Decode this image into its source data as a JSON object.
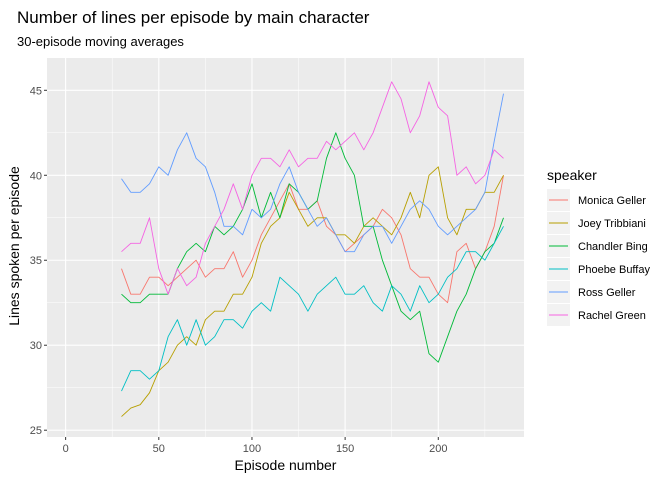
{
  "chart_data": {
    "type": "line",
    "title": "Number of lines per episode by main character",
    "subtitle": "30-episode moving averages",
    "xlabel": "Episode number",
    "ylabel": "Lines spoken per episode",
    "xlim": [
      -10,
      246
    ],
    "ylim": [
      24.6,
      46.9
    ],
    "x_ticks": [
      0,
      50,
      100,
      150,
      200
    ],
    "y_ticks": [
      25,
      30,
      35,
      40,
      45
    ],
    "grid": true,
    "legend_position": "right",
    "legend_title": "speaker",
    "series": [
      {
        "name": "Monica Geller",
        "color": "#F8766D",
        "x": [
          30,
          35,
          40,
          45,
          50,
          55,
          60,
          65,
          70,
          75,
          80,
          85,
          90,
          95,
          100,
          105,
          110,
          115,
          120,
          125,
          130,
          135,
          140,
          145,
          150,
          155,
          160,
          165,
          170,
          175,
          180,
          185,
          190,
          195,
          200,
          205,
          210,
          215,
          220,
          225,
          230,
          235
        ],
        "y": [
          34.5,
          33.0,
          33.0,
          34.0,
          34.0,
          33.5,
          34.0,
          34.5,
          35.0,
          34.0,
          34.5,
          34.5,
          35.5,
          34.0,
          35.0,
          36.5,
          37.5,
          38.5,
          39.5,
          38.0,
          38.0,
          38.5,
          37.0,
          36.5,
          35.5,
          36.0,
          36.5,
          37.0,
          38.0,
          37.5,
          36.5,
          34.5,
          34.0,
          34.0,
          33.0,
          32.5,
          35.5,
          36.0,
          34.5,
          35.5,
          37.0,
          40.0
        ]
      },
      {
        "name": "Joey Tribbiani",
        "color": "#B79F00",
        "x": [
          30,
          35,
          40,
          45,
          50,
          55,
          60,
          65,
          70,
          75,
          80,
          85,
          90,
          95,
          100,
          105,
          110,
          115,
          120,
          125,
          130,
          135,
          140,
          145,
          150,
          155,
          160,
          165,
          170,
          175,
          180,
          185,
          190,
          195,
          200,
          205,
          210,
          215,
          220,
          225,
          230,
          235
        ],
        "y": [
          25.8,
          26.3,
          26.5,
          27.2,
          28.5,
          29.0,
          30.0,
          30.5,
          30.0,
          31.5,
          32.0,
          32.0,
          33.0,
          33.0,
          34.0,
          36.0,
          37.0,
          37.5,
          39.0,
          38.0,
          37.0,
          37.5,
          37.5,
          36.5,
          36.5,
          36.0,
          37.0,
          37.5,
          37.0,
          36.5,
          37.5,
          39.0,
          37.5,
          40.0,
          40.5,
          37.5,
          36.5,
          38.0,
          38.0,
          39.0,
          39.0,
          40.0
        ]
      },
      {
        "name": "Chandler Bing",
        "color": "#00BA38",
        "x": [
          30,
          35,
          40,
          45,
          50,
          55,
          60,
          65,
          70,
          75,
          80,
          85,
          90,
          95,
          100,
          105,
          110,
          115,
          120,
          125,
          130,
          135,
          140,
          145,
          150,
          155,
          160,
          165,
          170,
          175,
          180,
          185,
          190,
          195,
          200,
          205,
          210,
          215,
          220,
          225,
          230,
          235
        ],
        "y": [
          33.0,
          32.5,
          32.5,
          33.0,
          33.0,
          33.0,
          34.5,
          35.5,
          36.0,
          35.5,
          37.0,
          36.5,
          37.0,
          38.0,
          39.5,
          37.5,
          39.0,
          37.5,
          39.5,
          39.0,
          38.0,
          38.5,
          41.0,
          42.5,
          41.0,
          40.0,
          37.0,
          37.0,
          35.0,
          33.5,
          32.0,
          31.5,
          32.0,
          29.5,
          29.0,
          30.5,
          32.0,
          33.0,
          34.5,
          35.5,
          36.0,
          37.5
        ]
      },
      {
        "name": "Phoebe Buffay",
        "color": "#00BFC4",
        "x": [
          30,
          35,
          40,
          45,
          50,
          55,
          60,
          65,
          70,
          75,
          80,
          85,
          90,
          95,
          100,
          105,
          110,
          115,
          120,
          125,
          130,
          135,
          140,
          145,
          150,
          155,
          160,
          165,
          170,
          175,
          180,
          185,
          190,
          195,
          200,
          205,
          210,
          215,
          220,
          225,
          230,
          235
        ],
        "y": [
          27.3,
          28.5,
          28.5,
          28.0,
          28.5,
          30.5,
          31.5,
          30.0,
          31.5,
          30.0,
          30.5,
          31.5,
          31.5,
          31.0,
          32.0,
          32.5,
          32.0,
          34.0,
          33.5,
          33.0,
          32.0,
          33.0,
          33.5,
          34.0,
          33.0,
          33.0,
          33.5,
          32.5,
          32.0,
          33.5,
          33.0,
          32.0,
          33.5,
          32.5,
          33.0,
          34.0,
          34.5,
          35.5,
          35.5,
          35.0,
          36.0,
          37.0
        ]
      },
      {
        "name": "Ross Geller",
        "color": "#619CFF",
        "x": [
          30,
          35,
          40,
          45,
          50,
          55,
          60,
          65,
          70,
          75,
          80,
          85,
          90,
          95,
          100,
          105,
          110,
          115,
          120,
          125,
          130,
          135,
          140,
          145,
          150,
          155,
          160,
          165,
          170,
          175,
          180,
          185,
          190,
          195,
          200,
          205,
          210,
          215,
          220,
          225,
          230,
          235
        ],
        "y": [
          39.8,
          39.0,
          39.0,
          39.5,
          40.5,
          40.0,
          41.5,
          42.5,
          41.0,
          40.5,
          39.0,
          37.0,
          37.0,
          36.5,
          38.0,
          37.5,
          38.0,
          39.5,
          40.5,
          39.0,
          38.0,
          37.0,
          37.5,
          36.5,
          35.5,
          35.5,
          36.5,
          37.0,
          37.0,
          36.0,
          37.0,
          38.0,
          38.5,
          38.0,
          37.0,
          36.5,
          37.0,
          37.5,
          38.0,
          39.0,
          42.0,
          44.8
        ]
      },
      {
        "name": "Rachel Green",
        "color": "#F564E3",
        "x": [
          30,
          35,
          40,
          45,
          50,
          55,
          60,
          65,
          70,
          75,
          80,
          85,
          90,
          95,
          100,
          105,
          110,
          115,
          120,
          125,
          130,
          135,
          140,
          145,
          150,
          155,
          160,
          165,
          170,
          175,
          180,
          185,
          190,
          195,
          200,
          205,
          210,
          215,
          220,
          225,
          230,
          235
        ],
        "y": [
          35.5,
          36.0,
          36.0,
          37.5,
          34.5,
          33.0,
          34.5,
          33.5,
          34.0,
          36.0,
          37.0,
          38.0,
          39.5,
          38.0,
          40.0,
          41.0,
          41.0,
          40.5,
          41.5,
          40.5,
          41.0,
          41.0,
          42.0,
          41.5,
          42.0,
          42.5,
          41.5,
          42.5,
          44.0,
          45.5,
          44.5,
          42.5,
          43.5,
          45.5,
          44.0,
          43.5,
          40.0,
          40.5,
          39.5,
          40.0,
          41.5,
          41.0
        ]
      }
    ]
  }
}
